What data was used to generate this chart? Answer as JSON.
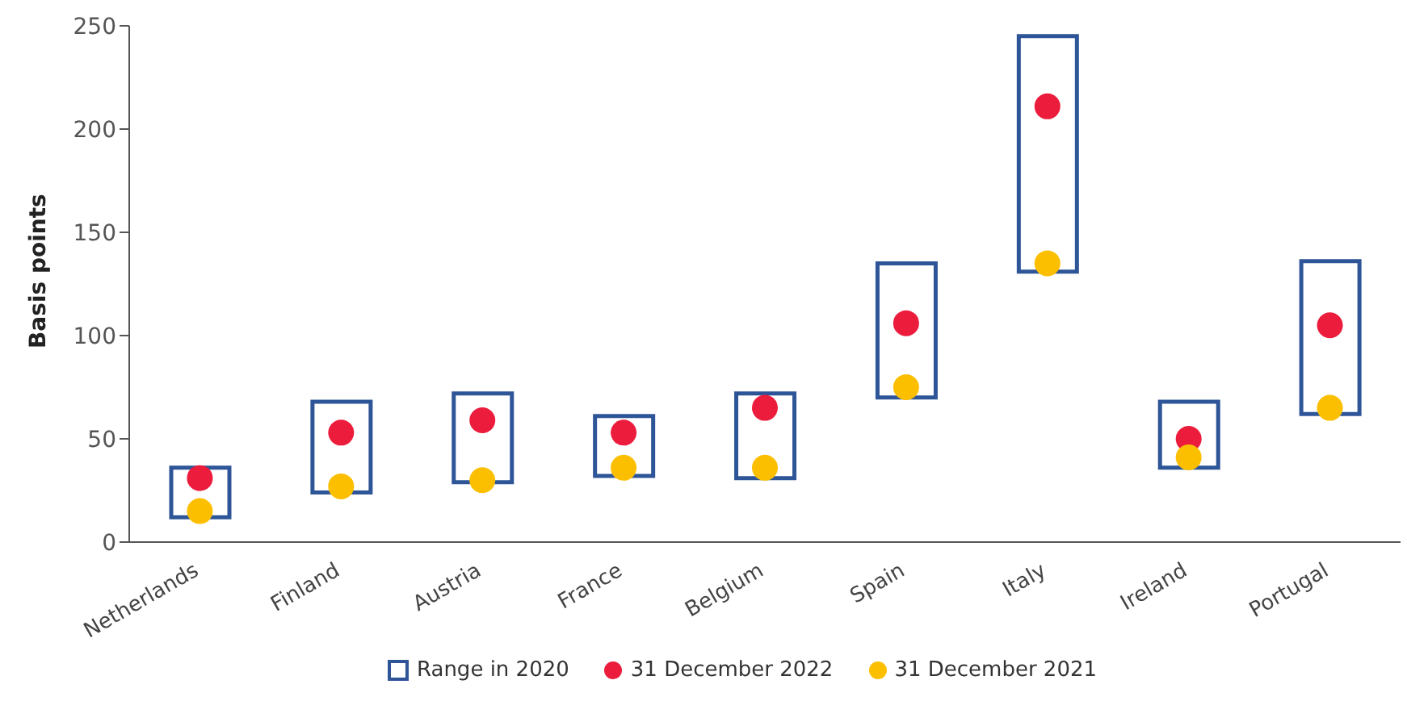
{
  "chart_data": {
    "type": "bar",
    "ylabel": "Basis points",
    "categories": [
      "Netherlands",
      "Finland",
      "Austria",
      "France",
      "Belgium",
      "Spain",
      "Italy",
      "Ireland",
      "Portugal"
    ],
    "series": [
      {
        "name": "Range in 2020",
        "color": "#2e5597",
        "base": [
          12,
          24,
          29,
          32,
          31,
          70,
          131,
          36,
          62
        ],
        "values": [
          24,
          44,
          43,
          29,
          41,
          65,
          114,
          32,
          74
        ]
      },
      {
        "name": "31 December 2022",
        "type": "scatter",
        "color": "#ec1c3c",
        "values": [
          31,
          53,
          59,
          53,
          65,
          106,
          211,
          50,
          105
        ]
      },
      {
        "name": "31 December 2021",
        "type": "scatter",
        "color": "#fcbf00",
        "values": [
          15,
          27,
          30,
          36,
          36,
          75,
          135,
          41,
          65
        ]
      }
    ],
    "ylim": [
      0,
      250
    ],
    "yticks": [
      0,
      50,
      100,
      150,
      200,
      250
    ],
    "marker": "circle",
    "legend": "bottom"
  }
}
